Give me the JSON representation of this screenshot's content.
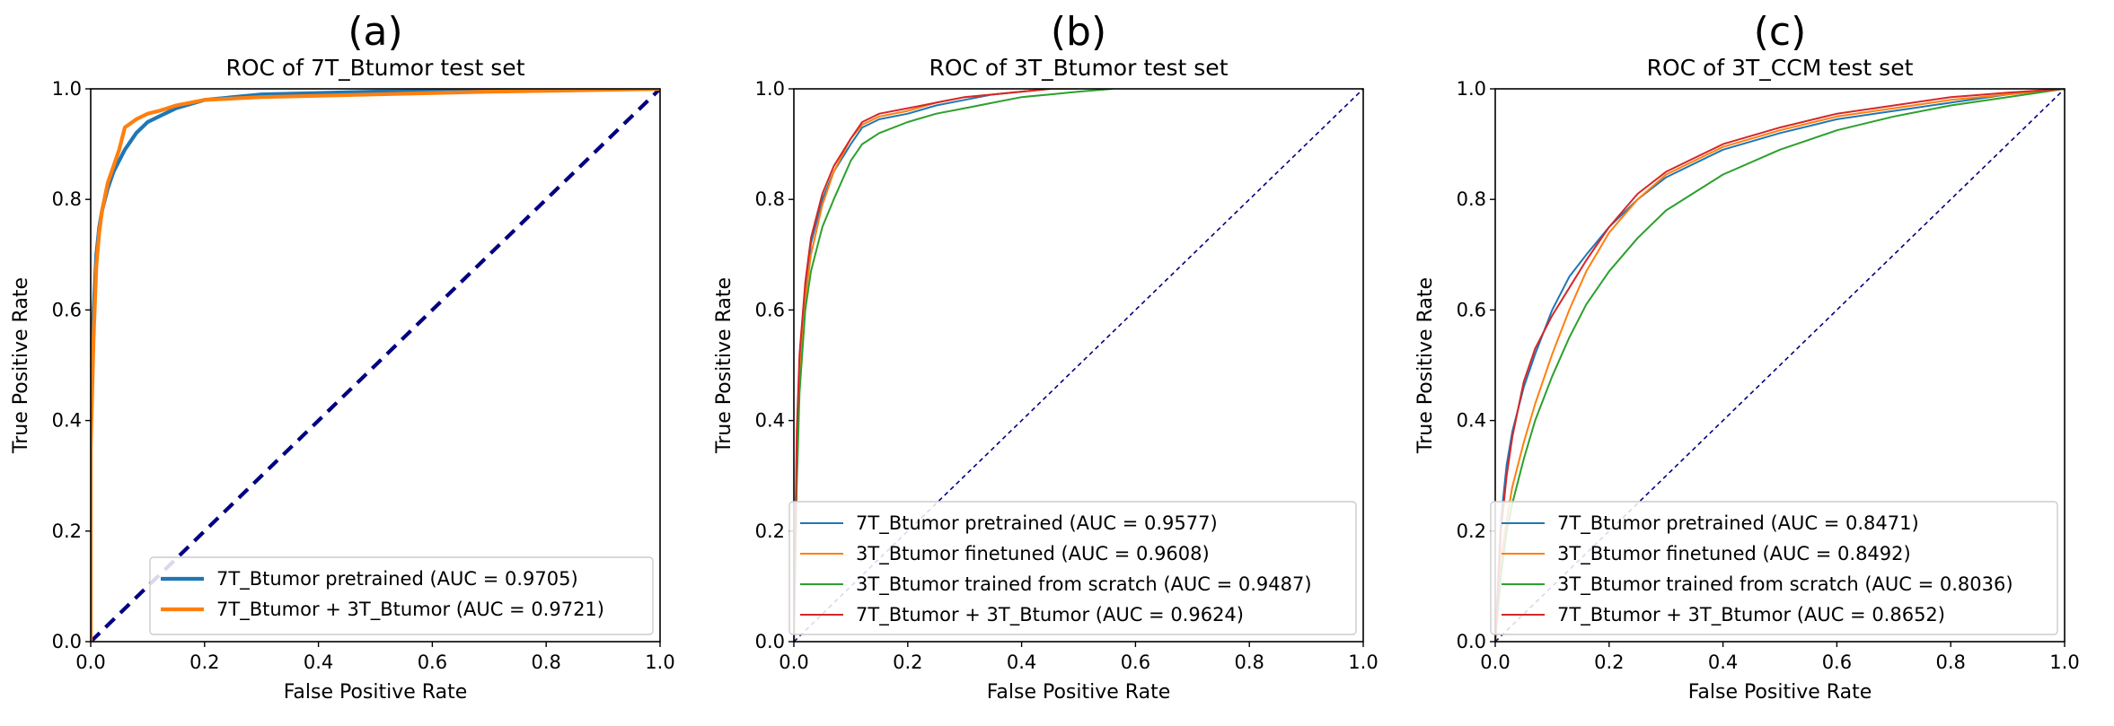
{
  "chart_data": [
    {
      "type": "line",
      "panel_label": "(a)",
      "title": "ROC of 7T_Btumor test set",
      "xlabel": "False Positive Rate",
      "ylabel": "True Positive Rate",
      "xlim": [
        0,
        1
      ],
      "ylim": [
        0,
        1
      ],
      "xticks": [
        "0.0",
        "0.2",
        "0.4",
        "0.6",
        "0.8",
        "1.0"
      ],
      "yticks": [
        "0.0",
        "0.2",
        "0.4",
        "0.6",
        "0.8",
        "1.0"
      ],
      "grid": false,
      "legend_position": "lower right",
      "diagonal": {
        "color": "#000080",
        "style": "dashed-thick"
      },
      "series": [
        {
          "name": "7T_Btumor pretrained (AUC = 0.9705)",
          "color": "#1f77b4",
          "x": [
            0,
            0,
            0.005,
            0.01,
            0.015,
            0.02,
            0.03,
            0.04,
            0.05,
            0.06,
            0.08,
            0.1,
            0.12,
            0.15,
            0.2,
            0.3,
            0.5,
            0.7,
            0.9,
            1.0
          ],
          "y": [
            0,
            0.5,
            0.6,
            0.7,
            0.75,
            0.78,
            0.82,
            0.85,
            0.87,
            0.89,
            0.92,
            0.94,
            0.95,
            0.965,
            0.98,
            0.99,
            0.995,
            0.997,
            0.999,
            1.0
          ]
        },
        {
          "name": "7T_Btumor + 3T_Btumor (AUC = 0.9721)",
          "color": "#ff7f0e",
          "x": [
            0,
            0,
            0.005,
            0.01,
            0.015,
            0.02,
            0.03,
            0.04,
            0.05,
            0.06,
            0.08,
            0.1,
            0.12,
            0.15,
            0.2,
            0.3,
            0.5,
            0.7,
            0.9,
            1.0
          ],
          "y": [
            0,
            0.35,
            0.55,
            0.68,
            0.74,
            0.78,
            0.83,
            0.86,
            0.89,
            0.93,
            0.945,
            0.955,
            0.96,
            0.97,
            0.98,
            0.985,
            0.99,
            0.995,
            0.998,
            1.0
          ]
        }
      ]
    },
    {
      "type": "line",
      "panel_label": "(b)",
      "title": "ROC of 3T_Btumor test set",
      "xlabel": "False Positive Rate",
      "ylabel": "True Positive Rate",
      "xlim": [
        0,
        1
      ],
      "ylim": [
        0,
        1
      ],
      "xticks": [
        "0.0",
        "0.2",
        "0.4",
        "0.6",
        "0.8",
        "1.0"
      ],
      "yticks": [
        "0.0",
        "0.2",
        "0.4",
        "0.6",
        "0.8",
        "1.0"
      ],
      "grid": false,
      "legend_position": "lower right",
      "diagonal": {
        "color": "#000080",
        "style": "dashed-thin"
      },
      "series": [
        {
          "name": "7T_Btumor pretrained (AUC = 0.9577)",
          "color": "#1f77b4",
          "x": [
            0,
            0.005,
            0.01,
            0.02,
            0.03,
            0.05,
            0.07,
            0.1,
            0.12,
            0.15,
            0.2,
            0.25,
            0.3,
            0.35,
            0.4,
            0.45,
            0.5
          ],
          "y": [
            0,
            0.35,
            0.5,
            0.63,
            0.72,
            0.8,
            0.85,
            0.9,
            0.93,
            0.945,
            0.955,
            0.97,
            0.98,
            0.99,
            0.995,
            1.0,
            1.0
          ]
        },
        {
          "name": "3T_Btumor finetuned (AUC = 0.9608)",
          "color": "#ff7f0e",
          "x": [
            0,
            0.005,
            0.01,
            0.02,
            0.03,
            0.05,
            0.07,
            0.1,
            0.12,
            0.15,
            0.2,
            0.25,
            0.3,
            0.35,
            0.4,
            0.45,
            0.5
          ],
          "y": [
            0,
            0.3,
            0.47,
            0.62,
            0.7,
            0.79,
            0.85,
            0.91,
            0.935,
            0.95,
            0.96,
            0.975,
            0.985,
            0.99,
            0.995,
            1.0,
            1.0
          ]
        },
        {
          "name": "3T_Btumor trained from scratch (AUC = 0.9487)",
          "color": "#2ca02c",
          "x": [
            0,
            0.005,
            0.01,
            0.02,
            0.03,
            0.05,
            0.07,
            0.1,
            0.12,
            0.15,
            0.2,
            0.25,
            0.3,
            0.35,
            0.4,
            0.45,
            0.5,
            0.56
          ],
          "y": [
            0,
            0.28,
            0.45,
            0.6,
            0.67,
            0.75,
            0.8,
            0.87,
            0.9,
            0.92,
            0.94,
            0.955,
            0.965,
            0.975,
            0.985,
            0.99,
            0.995,
            1.0
          ]
        },
        {
          "name": "7T_Btumor + 3T_Btumor (AUC = 0.9624)",
          "color": "#d62728",
          "x": [
            0,
            0.005,
            0.01,
            0.02,
            0.03,
            0.05,
            0.07,
            0.1,
            0.12,
            0.15,
            0.2,
            0.25,
            0.3,
            0.35,
            0.4,
            0.45
          ],
          "y": [
            0,
            0.38,
            0.52,
            0.65,
            0.73,
            0.81,
            0.86,
            0.91,
            0.94,
            0.955,
            0.965,
            0.975,
            0.985,
            0.99,
            0.995,
            1.0
          ]
        }
      ]
    },
    {
      "type": "line",
      "panel_label": "(c)",
      "title": "ROC of 3T_CCM test set",
      "xlabel": "False Positive Rate",
      "ylabel": "True Positive Rate",
      "xlim": [
        0,
        1
      ],
      "ylim": [
        0,
        1
      ],
      "xticks": [
        "0.0",
        "0.2",
        "0.4",
        "0.6",
        "0.8",
        "1.0"
      ],
      "yticks": [
        "0.0",
        "0.2",
        "0.4",
        "0.6",
        "0.8",
        "1.0"
      ],
      "grid": false,
      "legend_position": "lower right",
      "diagonal": {
        "color": "#000080",
        "style": "dashed-thin"
      },
      "series": [
        {
          "name": "7T_Btumor pretrained (AUC = 0.8471)",
          "color": "#1f77b4",
          "x": [
            0,
            0.01,
            0.02,
            0.03,
            0.05,
            0.07,
            0.1,
            0.13,
            0.16,
            0.2,
            0.25,
            0.3,
            0.4,
            0.5,
            0.6,
            0.7,
            0.8,
            0.9,
            1.0
          ],
          "y": [
            0,
            0.22,
            0.32,
            0.38,
            0.46,
            0.52,
            0.6,
            0.66,
            0.7,
            0.75,
            0.8,
            0.84,
            0.89,
            0.92,
            0.945,
            0.96,
            0.975,
            0.99,
            1.0
          ]
        },
        {
          "name": "3T_Btumor finetuned (AUC = 0.8492)",
          "color": "#ff7f0e",
          "x": [
            0,
            0.01,
            0.02,
            0.03,
            0.05,
            0.07,
            0.1,
            0.13,
            0.16,
            0.2,
            0.25,
            0.3,
            0.4,
            0.5,
            0.6,
            0.7,
            0.8,
            0.9,
            1.0
          ],
          "y": [
            0,
            0.15,
            0.22,
            0.28,
            0.36,
            0.43,
            0.52,
            0.6,
            0.67,
            0.74,
            0.8,
            0.845,
            0.895,
            0.925,
            0.95,
            0.965,
            0.98,
            0.99,
            1.0
          ]
        },
        {
          "name": "3T_Btumor trained from scratch (AUC = 0.8036)",
          "color": "#2ca02c",
          "x": [
            0,
            0.01,
            0.02,
            0.03,
            0.05,
            0.07,
            0.1,
            0.13,
            0.16,
            0.2,
            0.25,
            0.3,
            0.4,
            0.5,
            0.6,
            0.7,
            0.8,
            0.9,
            1.0
          ],
          "y": [
            0,
            0.12,
            0.2,
            0.25,
            0.33,
            0.4,
            0.48,
            0.55,
            0.61,
            0.67,
            0.73,
            0.78,
            0.845,
            0.89,
            0.925,
            0.95,
            0.97,
            0.985,
            1.0
          ]
        },
        {
          "name": "7T_Btumor + 3T_Btumor (AUC = 0.8652)",
          "color": "#d62728",
          "x": [
            0,
            0.01,
            0.02,
            0.03,
            0.05,
            0.07,
            0.1,
            0.13,
            0.16,
            0.2,
            0.25,
            0.3,
            0.4,
            0.5,
            0.6,
            0.7,
            0.8,
            0.9,
            1.0
          ],
          "y": [
            0,
            0.2,
            0.3,
            0.37,
            0.47,
            0.53,
            0.59,
            0.64,
            0.69,
            0.75,
            0.81,
            0.85,
            0.9,
            0.93,
            0.955,
            0.97,
            0.985,
            0.993,
            1.0
          ]
        }
      ]
    }
  ]
}
